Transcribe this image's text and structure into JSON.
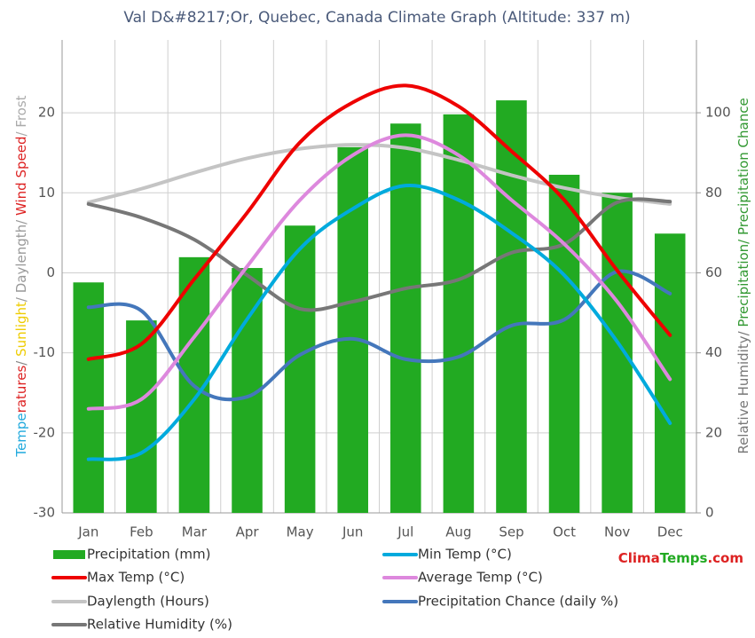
{
  "chart_data": {
    "type": "combo",
    "title": "Val D&#8217;Or, Quebec, Canada Climate Graph (Altitude: 337 m)",
    "ylabel_parts": [
      {
        "text": "Tempe",
        "color": "#22aadd"
      },
      {
        "text": "ratures",
        "color": "#dd2222"
      },
      {
        "text": "/ ",
        "color": "#888888"
      },
      {
        "text": "Sunlight",
        "color": "#eecc00"
      },
      {
        "text": "/ Daylength/ ",
        "color": "#999999"
      },
      {
        "text": "Wind Speed",
        "color": "#dd2222"
      },
      {
        "text": "/ Frost",
        "color": "#aaaaaa"
      }
    ],
    "y2label_parts": [
      {
        "text": "Relative Humidity/ ",
        "color": "#777777"
      },
      {
        "text": "Precipitation/ Precipitation Chance",
        "color": "#339933"
      }
    ],
    "brand_parts": [
      {
        "text": "Clima",
        "color": "#dd2222"
      },
      {
        "text": "Temps",
        "color": "#22aa22"
      },
      {
        "text": ".com",
        "color": "#dd2222"
      }
    ],
    "categories": [
      "Jan",
      "Feb",
      "Mar",
      "Apr",
      "May",
      "Jun",
      "Jul",
      "Aug",
      "Sep",
      "Oct",
      "Nov",
      "Dec"
    ],
    "ylim": [
      -30,
      29.1
    ],
    "yticks": [
      -30,
      -20,
      -10,
      0,
      10,
      20
    ],
    "y2lim": [
      0,
      118.2
    ],
    "y2ticks": [
      0,
      20,
      40,
      60,
      80,
      100
    ],
    "grid": true,
    "series": [
      {
        "name": "Precipitation (mm)",
        "kind": "bar",
        "axis": "y2",
        "color": "#22aa22",
        "values": [
          57.6,
          48.1,
          63.9,
          61.2,
          71.8,
          91.4,
          97.3,
          99.6,
          103.1,
          84.5,
          80,
          69.8
        ]
      },
      {
        "name": "Min Temp (°C)",
        "kind": "line",
        "color": "#00aadd",
        "values": [
          -23.3,
          -22.5,
          -15.8,
          -5.8,
          3.0,
          8.0,
          10.9,
          9.1,
          5.0,
          -0.3,
          -8.6,
          -18.8
        ]
      },
      {
        "name": "Max Temp (°C)",
        "kind": "line",
        "color": "#ee0000",
        "values": [
          -10.8,
          -8.9,
          -0.8,
          7.5,
          16.3,
          21.3,
          23.4,
          20.8,
          15.2,
          9.1,
          0.3,
          -7.8
        ]
      },
      {
        "name": "Average Temp (°C)",
        "kind": "line",
        "color": "#dd88dd",
        "values": [
          -17.0,
          -15.8,
          -8.0,
          0.8,
          9.1,
          14.7,
          17.2,
          14.7,
          9.1,
          3.6,
          -3.6,
          -13.3
        ]
      },
      {
        "name": "Daylength (Hours)",
        "kind": "line",
        "color": "#c4c4c4",
        "values": [
          8.8,
          10.5,
          12.5,
          14.3,
          15.5,
          16.0,
          15.6,
          14.1,
          12.2,
          10.6,
          9.4,
          8.6
        ]
      },
      {
        "name": "Precipitation Chance (daily %)",
        "kind": "line",
        "axis": "y2",
        "color": "#4477bb",
        "values": [
          51.4,
          50.5,
          31.7,
          29.0,
          39.5,
          43.5,
          38.4,
          39.0,
          46.8,
          48.3,
          60.3,
          54.8
        ]
      },
      {
        "name": "Relative Humidity (%)",
        "kind": "line",
        "axis": "y2",
        "color": "#777777",
        "values": [
          77.2,
          73.8,
          68.3,
          59.4,
          51.0,
          52.8,
          56.1,
          58.3,
          65.0,
          67.2,
          77.6,
          77.8
        ]
      }
    ]
  }
}
